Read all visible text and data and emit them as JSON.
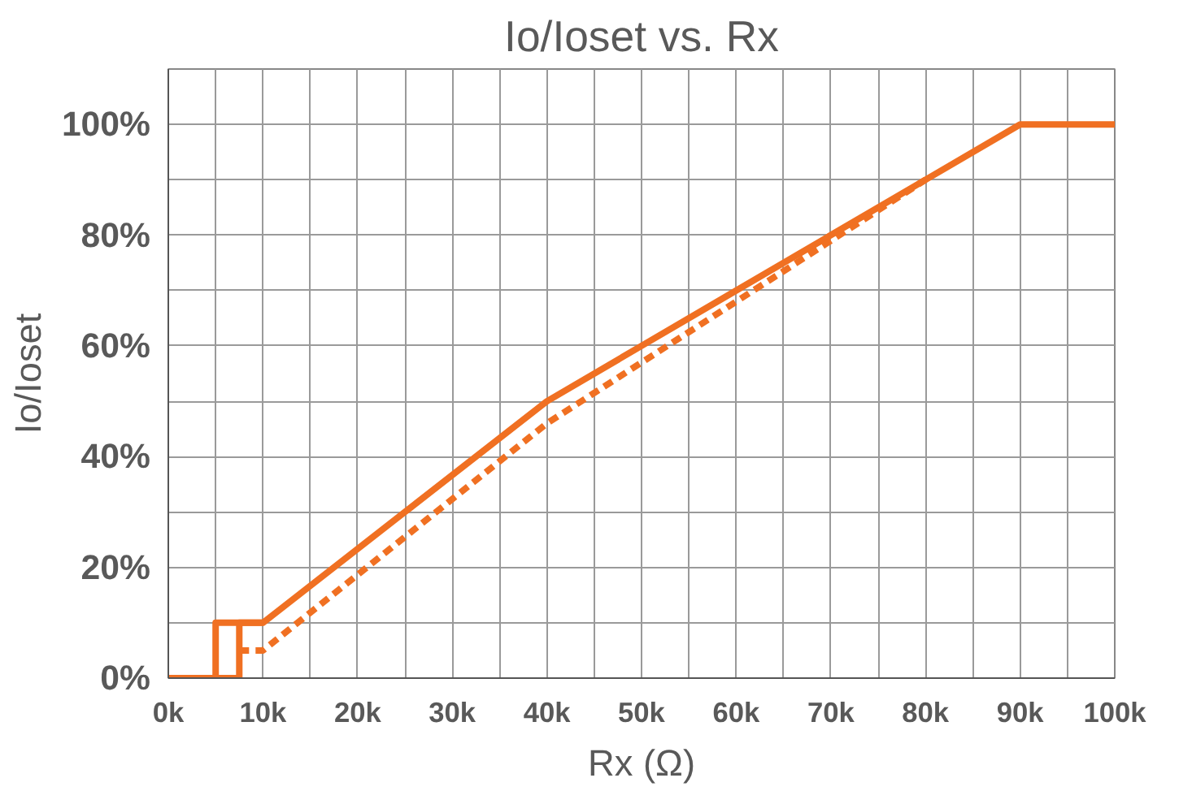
{
  "chart_data": {
    "type": "line",
    "title": "Io/Ioset vs. Rx",
    "xlabel": "Rx (Ω)",
    "ylabel": "Io/Ioset",
    "xlim": [
      0,
      100000
    ],
    "ylim": [
      0,
      110
    ],
    "xticks": [
      {
        "value": 0,
        "label": "0k"
      },
      {
        "value": 5000,
        "label": null
      },
      {
        "value": 10000,
        "label": "10k"
      },
      {
        "value": 15000,
        "label": null
      },
      {
        "value": 20000,
        "label": "20k"
      },
      {
        "value": 25000,
        "label": null
      },
      {
        "value": 30000,
        "label": "30k"
      },
      {
        "value": 35000,
        "label": null
      },
      {
        "value": 40000,
        "label": "40k"
      },
      {
        "value": 45000,
        "label": null
      },
      {
        "value": 50000,
        "label": "50k"
      },
      {
        "value": 55000,
        "label": null
      },
      {
        "value": 60000,
        "label": "60k"
      },
      {
        "value": 65000,
        "label": null
      },
      {
        "value": 70000,
        "label": "70k"
      },
      {
        "value": 75000,
        "label": null
      },
      {
        "value": 80000,
        "label": "80k"
      },
      {
        "value": 85000,
        "label": null
      },
      {
        "value": 90000,
        "label": "90k"
      },
      {
        "value": 95000,
        "label": null
      },
      {
        "value": 100000,
        "label": "100k"
      }
    ],
    "yticks": [
      {
        "value": 0,
        "label": "0%"
      },
      {
        "value": 10,
        "label": null
      },
      {
        "value": 20,
        "label": "20%"
      },
      {
        "value": 30,
        "label": null
      },
      {
        "value": 40,
        "label": "40%"
      },
      {
        "value": 50,
        "label": null
      },
      {
        "value": 60,
        "label": "60%"
      },
      {
        "value": 70,
        "label": null
      },
      {
        "value": 80,
        "label": "80%"
      },
      {
        "value": 90,
        "label": null
      },
      {
        "value": 100,
        "label": "100%"
      },
      {
        "value": 110,
        "label": null
      }
    ],
    "grid": true,
    "marker": "none",
    "series": [
      {
        "color": "#f07022",
        "line_style": "solid",
        "x": [
          0,
          7500,
          7500,
          10000,
          25000,
          40000,
          50000,
          60000,
          70000,
          80000,
          90000,
          100000
        ],
        "values": [
          0,
          0,
          10,
          10,
          30,
          50,
          60,
          70,
          80,
          90,
          100,
          100
        ]
      },
      {
        "color": "#f07022",
        "line_style": "solid",
        "x": [
          10000,
          5000,
          5000
        ],
        "values": [
          10,
          10,
          0
        ]
      },
      {
        "color": "#f07022",
        "line_style": "dashed",
        "x": [
          7500,
          10000,
          40000,
          50000,
          70000,
          80000
        ],
        "values": [
          5,
          5,
          46,
          57,
          79,
          90
        ]
      }
    ]
  }
}
